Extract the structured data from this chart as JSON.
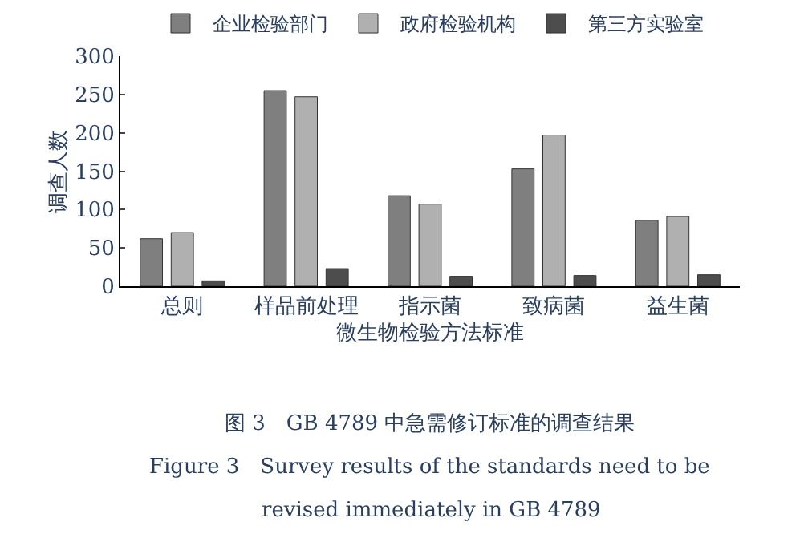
{
  "chart_data": {
    "type": "bar",
    "xlabel": "微生物检验方法标准",
    "ylabel": "调查人数",
    "categories": [
      "总则",
      "样品前处理",
      "指示菌",
      "致病菌",
      "益生菌"
    ],
    "series": [
      {
        "name": "企业检验部门",
        "color": "#7f7f7f",
        "values": [
          62,
          255,
          118,
          153,
          86
        ]
      },
      {
        "name": "政府检验机构",
        "color": "#b0b0b0",
        "values": [
          70,
          247,
          107,
          197,
          91
        ]
      },
      {
        "name": "第三方实验室",
        "color": "#4d4d4d",
        "values": [
          7,
          23,
          13,
          14,
          15
        ]
      }
    ],
    "ylim": [
      0,
      300
    ],
    "yticks": [
      0,
      50,
      100,
      150,
      200,
      250,
      300
    ],
    "legend": "top",
    "annotations": [
      "图 3　GB 4789 中急需修订标准的调查结果",
      "Figure 3　Survey results of the standards need to be",
      "revised immediately in GB 4789"
    ]
  }
}
